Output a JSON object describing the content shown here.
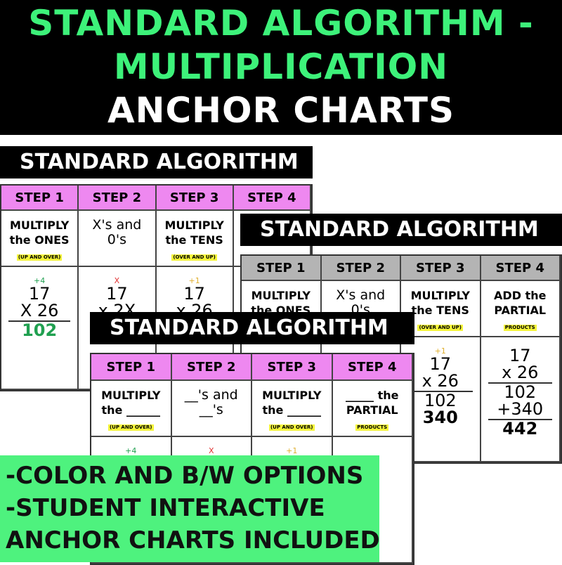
{
  "banner": {
    "line1": "STANDARD ALGORITHM -",
    "line2": "MULTIPLICATION",
    "line3": "ANCHOR CHARTS",
    "colors": {
      "green": "#3df27a",
      "white": "#ffffff",
      "background": "#000000"
    }
  },
  "cards": [
    {
      "title": "STANDARD ALGORITHM",
      "header_color": "#ee88f0",
      "steps": [
        "STEP 1",
        "STEP 2",
        "STEP 3",
        "STEP 4"
      ],
      "texts": [
        [
          "MULTIPLY",
          "the ONES",
          "(UP AND OVER)"
        ],
        [
          "X's and",
          "0's",
          ""
        ],
        [
          "MULTIPLY",
          "the TENS",
          "(OVER AND UP)"
        ],
        [
          "",
          "",
          ""
        ]
      ],
      "math": [
        [
          "+4",
          "17",
          "X 26",
          "102"
        ],
        [
          "X",
          "17",
          "x 2X"
        ],
        [
          "+1",
          "17",
          "x 26"
        ],
        []
      ]
    },
    {
      "title": "STANDARD ALGORITHM",
      "header_color": "#b4b4b4",
      "steps": [
        "STEP 1",
        "STEP 2",
        "STEP 3",
        "STEP 4"
      ],
      "texts": [
        [
          "MULTIPLY",
          "the ONES",
          ""
        ],
        [
          "X's and",
          "0's",
          ""
        ],
        [
          "MULTIPLY",
          "the TENS",
          "(OVER AND UP)"
        ],
        [
          "ADD the",
          "PARTIAL",
          "PRODUCTS"
        ]
      ],
      "math": [
        [],
        [],
        [
          "+1",
          "17",
          "x 26",
          "102",
          "340"
        ],
        [
          "17",
          "x 26",
          "102",
          "+340",
          "442"
        ]
      ]
    },
    {
      "title": "STANDARD ALGORITHM",
      "header_color": "#ee88f0",
      "steps": [
        "STEP 1",
        "STEP 2",
        "STEP 3",
        "STEP 4"
      ],
      "texts": [
        [
          "MULTIPLY",
          "the ______",
          "(UP AND OVER)"
        ],
        [
          "__'s and",
          "__'s",
          ""
        ],
        [
          "MULTIPLY",
          "the ______",
          "(UP AND OVER)"
        ],
        [
          "_____ the",
          "PARTIAL",
          "PRODUCTS"
        ]
      ],
      "math": [
        [
          "+4"
        ],
        [
          "X"
        ],
        [
          "+1"
        ],
        []
      ]
    }
  ],
  "promo": {
    "lines": [
      "-COLOR AND B/W OPTIONS",
      "-STUDENT INTERACTIVE",
      "ANCHOR CHARTS INCLUDED"
    ],
    "color": "#4ef27e"
  }
}
